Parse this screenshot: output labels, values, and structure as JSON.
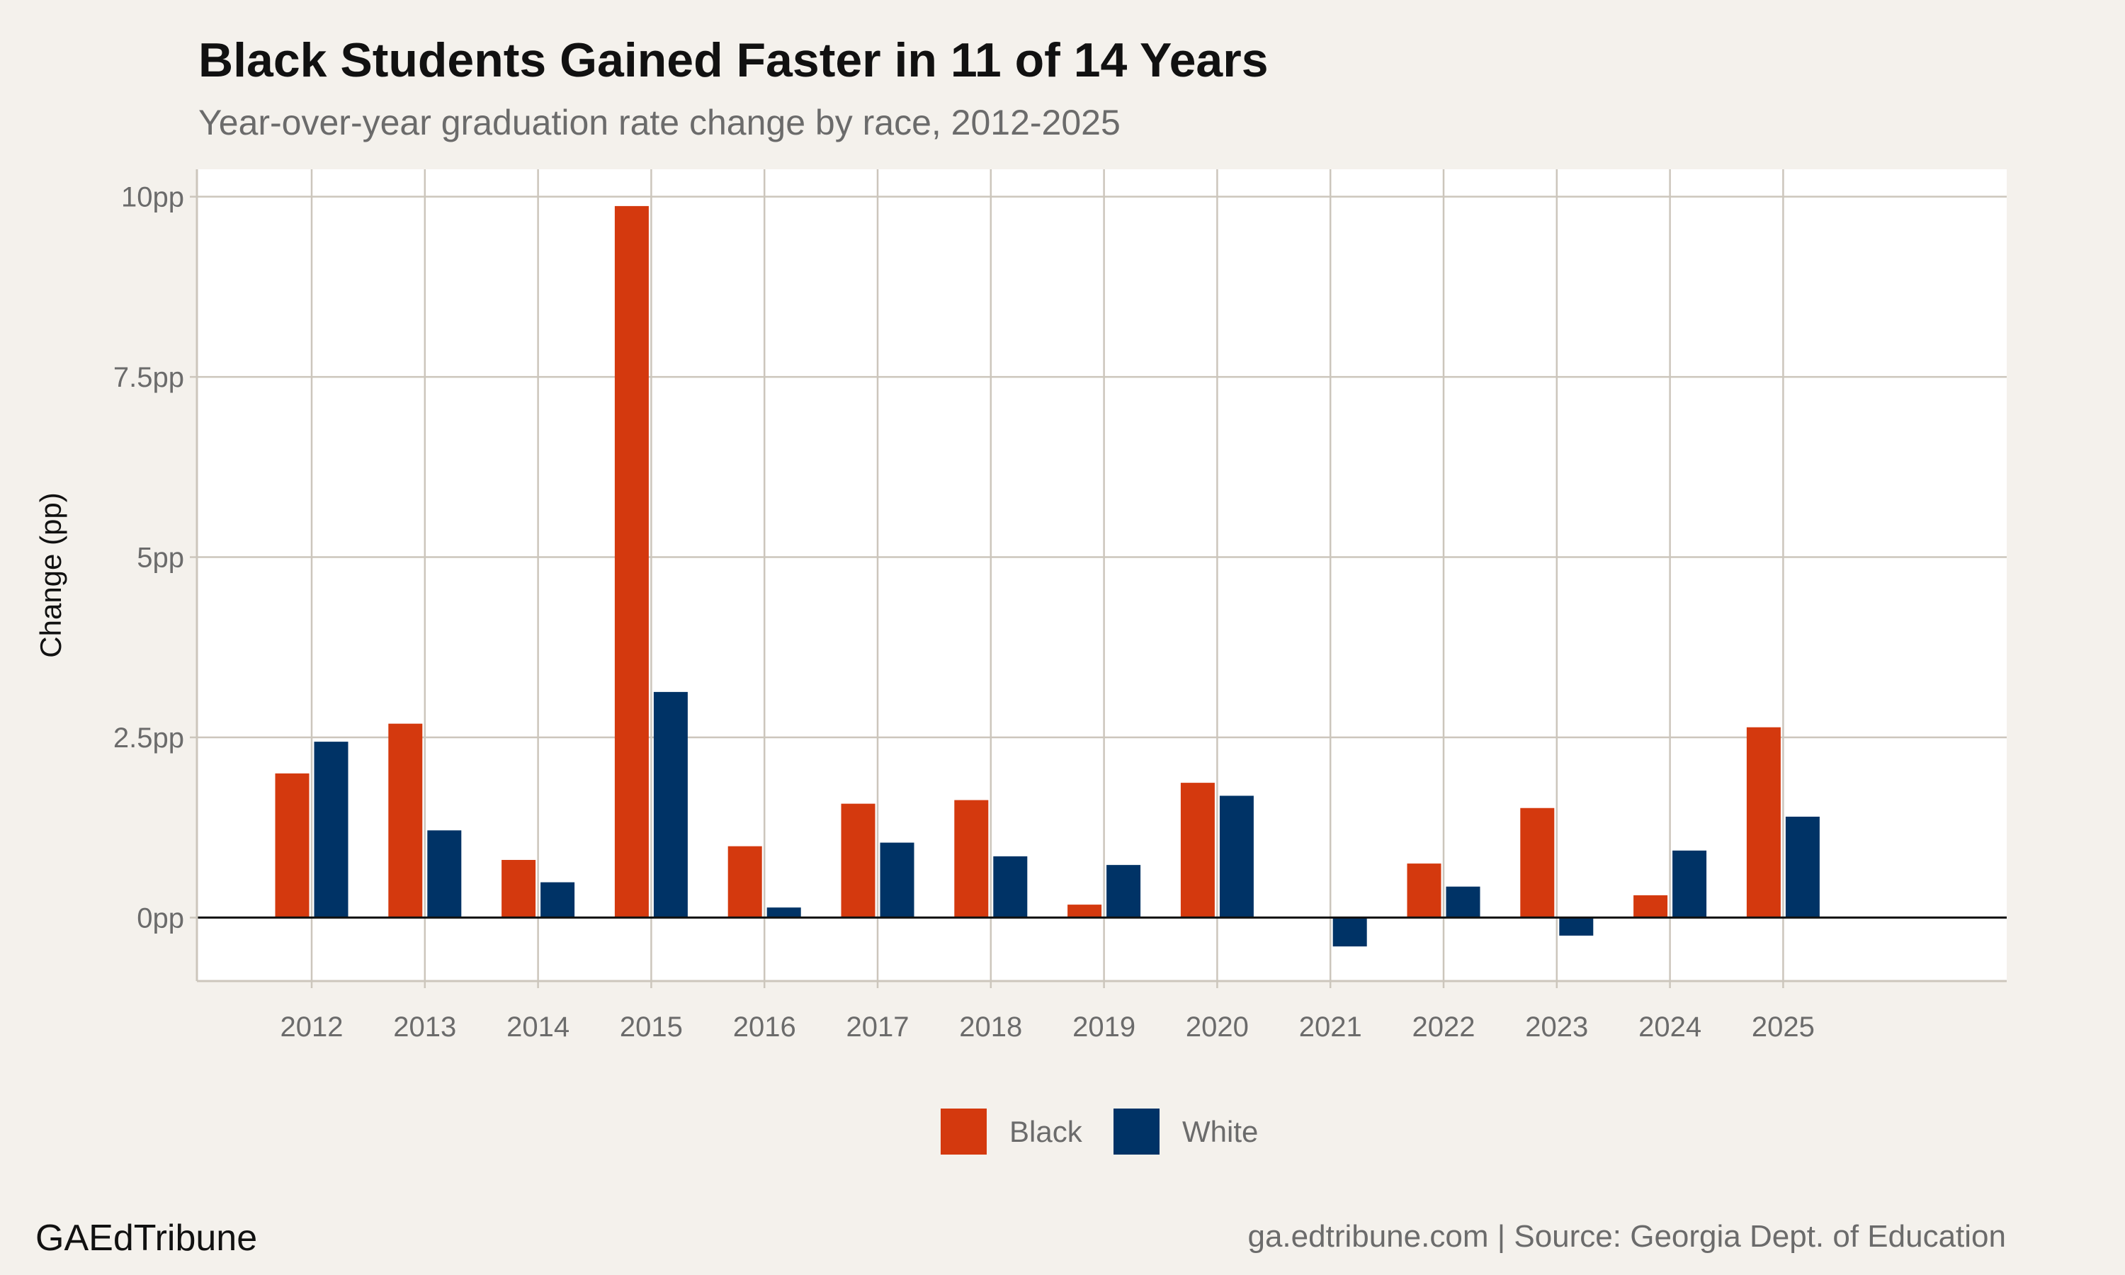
{
  "chart_data": {
    "type": "bar",
    "title": "Black Students Gained Faster in 11 of 14 Years",
    "subtitle": "Year-over-year graduation rate change by race, 2012-2025",
    "xlabel": "",
    "ylabel": "Change (pp)",
    "categories": [
      "2012",
      "2013",
      "2014",
      "2015",
      "2016",
      "2017",
      "2018",
      "2019",
      "2020",
      "2021",
      "2022",
      "2023",
      "2024",
      "2025"
    ],
    "series": [
      {
        "name": "Black",
        "color": "#d4390e",
        "values": [
          2.0,
          2.69,
          0.8,
          9.87,
          0.99,
          1.58,
          1.63,
          0.18,
          1.87,
          0.0,
          0.75,
          1.52,
          0.31,
          2.64
        ]
      },
      {
        "name": "White",
        "color": "#003366",
        "values": [
          2.44,
          1.21,
          0.49,
          3.13,
          0.14,
          1.04,
          0.85,
          0.73,
          1.69,
          -0.4,
          0.43,
          -0.25,
          0.93,
          1.4
        ]
      }
    ],
    "ylim": [
      -0.88,
      10.38
    ],
    "yticks": [
      0,
      2.5,
      5,
      7.5,
      10
    ],
    "ytick_labels": [
      "0pp",
      "2.5pp",
      "5pp",
      "7.5pp",
      "10pp"
    ],
    "grid": true,
    "zero_line": true,
    "legend_position": "bottom"
  },
  "footer": {
    "brand": "GAEdTribune",
    "source": "ga.edtribune.com | Source: Georgia Dept. of Education"
  },
  "colors": {
    "background": "#f4f1ec",
    "panel": "#ffffff",
    "grid": "#ccc6bc"
  }
}
